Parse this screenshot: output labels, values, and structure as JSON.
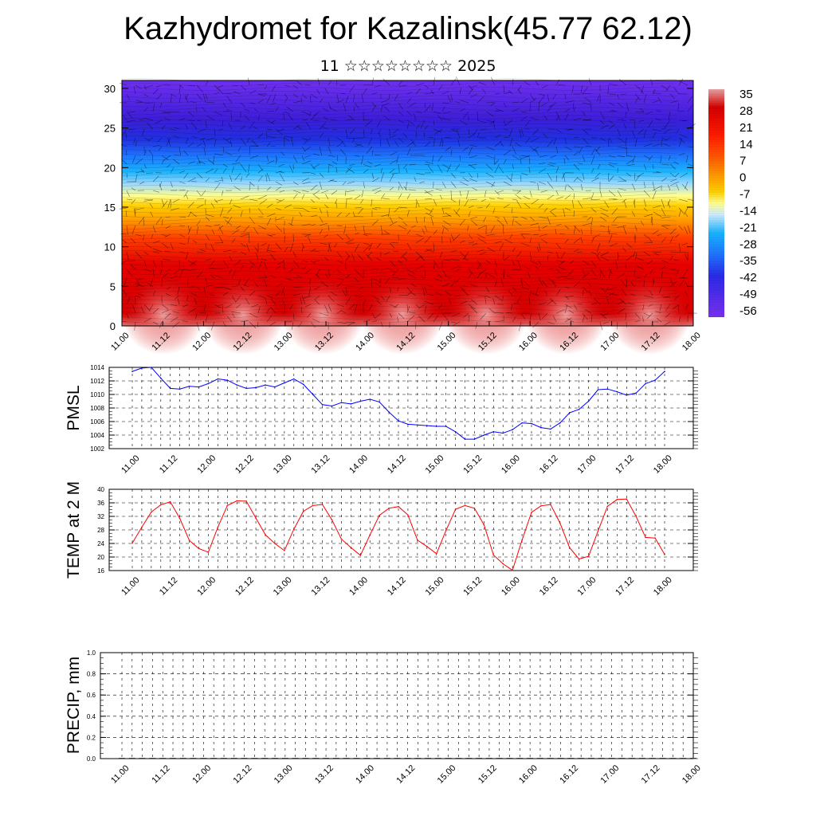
{
  "title": "Kazhydromet for Kazalinsk(45.77 62.12)",
  "subtitle": "11 ☆☆☆☆☆☆☆☆ 2025",
  "chart_data": [
    {
      "type": "heatmap",
      "description_of_fill": "temperature cross-section with wind vectors",
      "x_ticks": [
        "11.00",
        "11.12",
        "12.00",
        "12.12",
        "13.00",
        "13.12",
        "14.00",
        "14.12",
        "15.00",
        "15.12",
        "16.00",
        "16.12",
        "17.00",
        "17.12",
        "18.00"
      ],
      "y_ticks": [
        "0",
        "5",
        "10",
        "15",
        "20",
        "25",
        "30"
      ],
      "ylim": [
        0,
        31
      ],
      "colorbar_labels": [
        "35",
        "28",
        "21",
        "14",
        "7",
        "0",
        "-7",
        "-14",
        "-21",
        "-28",
        "-35",
        "-42",
        "-49",
        "-56"
      ],
      "colorbar_colors": [
        "#e6a0a0",
        "#d40000",
        "#ff3a00",
        "#ff8a00",
        "#ffc400",
        "#ffff80",
        "#dff0ff",
        "#19b4ff",
        "#1e78ff",
        "#3c3cf0",
        "#6a1fe8"
      ]
    },
    {
      "type": "line",
      "ylabel": "PMSL",
      "ylim": [
        1002,
        1014
      ],
      "y_ticks": [
        "1002",
        "1004",
        "1006",
        "1008",
        "1010",
        "1012",
        "1014"
      ],
      "x_ticks": [
        "11.00",
        "11.12",
        "12.00",
        "12.12",
        "13.00",
        "13.12",
        "14.00",
        "14.12",
        "15.00",
        "15.12",
        "16.00",
        "16.12",
        "17.00",
        "17.12",
        "18.00"
      ],
      "color": "#0000ff",
      "x": [
        0,
        3,
        6,
        9,
        12,
        15,
        18,
        21,
        24,
        27,
        30,
        33,
        36,
        39,
        42,
        45,
        48,
        51,
        54,
        57,
        60,
        63,
        66,
        69,
        72,
        75,
        78,
        81,
        84,
        87,
        90,
        93,
        96,
        99,
        102,
        105,
        108,
        111,
        114,
        117,
        120,
        123,
        126,
        129,
        132,
        135,
        138,
        141,
        144,
        147,
        150,
        153,
        156,
        159,
        162,
        165,
        168
      ],
      "values": [
        1013.4,
        1013.9,
        1014.0,
        1012.4,
        1010.9,
        1010.8,
        1011.2,
        1011.1,
        1011.6,
        1012.3,
        1012.1,
        1011.4,
        1010.9,
        1011.0,
        1011.4,
        1011.1,
        1011.7,
        1012.3,
        1011.5,
        1010.0,
        1008.5,
        1008.3,
        1008.8,
        1008.6,
        1009.0,
        1009.3,
        1008.9,
        1007.4,
        1006.1,
        1005.6,
        1005.5,
        1005.4,
        1005.3,
        1005.3,
        1004.5,
        1003.4,
        1003.4,
        1004.0,
        1004.5,
        1004.3,
        1004.8,
        1005.8,
        1005.7,
        1005.1,
        1004.9,
        1005.8,
        1007.3,
        1007.8,
        1009.0,
        1010.7,
        1010.8,
        1010.4,
        1009.9,
        1010.2,
        1011.6,
        1012.1,
        1013.4
      ]
    },
    {
      "type": "line",
      "ylabel": "TEMP at 2 M",
      "ylim": [
        16,
        40
      ],
      "y_ticks": [
        "16",
        "20",
        "24",
        "28",
        "32",
        "36",
        "40"
      ],
      "x_ticks": [
        "11.00",
        "11.12",
        "12.00",
        "12.12",
        "13.00",
        "13.12",
        "14.00",
        "14.12",
        "15.00",
        "15.12",
        "16.00",
        "16.12",
        "17.00",
        "17.12",
        "18.00"
      ],
      "color": "#ff0000",
      "x": [
        0,
        3,
        6,
        9,
        12,
        15,
        18,
        21,
        24,
        27,
        30,
        33,
        36,
        39,
        42,
        45,
        48,
        51,
        54,
        57,
        60,
        63,
        66,
        69,
        72,
        75,
        78,
        81,
        84,
        87,
        90,
        93,
        96,
        99,
        102,
        105,
        108,
        111,
        114,
        117,
        120,
        123,
        126,
        129,
        132,
        135,
        138,
        141,
        144,
        147,
        150,
        153,
        156,
        159,
        162,
        165,
        168
      ],
      "values": [
        24.1,
        28.8,
        33.3,
        35.4,
        36.3,
        31.4,
        24.9,
        22.5,
        21.4,
        28.8,
        35.2,
        36.6,
        36.5,
        31.5,
        26.6,
        24.0,
        21.9,
        28.2,
        33.5,
        35.2,
        35.5,
        31.0,
        25.3,
        22.8,
        20.5,
        26.5,
        32.3,
        34.4,
        34.9,
        32.4,
        25.0,
        23.1,
        21.0,
        27.8,
        34.1,
        35.2,
        34.4,
        29.5,
        20.6,
        18.0,
        16.1,
        25.0,
        33.2,
        35.1,
        35.5,
        30.0,
        22.8,
        19.4,
        20.2,
        27.7,
        35.0,
        37.0,
        37.1,
        32.0,
        25.8,
        25.6,
        20.8
      ]
    },
    {
      "type": "bar",
      "ylabel": "PRECIP, mm",
      "ylim": [
        0,
        1.0
      ],
      "y_ticks": [
        "0.0",
        "0.2",
        "0.4",
        "0.6",
        "0.8",
        "1.0"
      ],
      "x_ticks": [
        "11.00",
        "11.12",
        "12.00",
        "12.12",
        "13.00",
        "13.12",
        "14.00",
        "14.12",
        "15.00",
        "15.12",
        "16.00",
        "16.12",
        "17.00",
        "17.12",
        "18.00"
      ],
      "color": "#006400",
      "values": [
        0,
        0,
        0,
        0,
        0,
        0,
        0,
        0,
        0,
        0,
        0,
        0,
        0,
        0,
        0,
        0,
        0,
        0,
        0,
        0,
        0,
        0,
        0,
        0,
        0,
        0,
        0,
        0,
        0,
        0,
        0,
        0,
        0,
        0,
        0,
        0,
        0,
        0,
        0,
        0,
        0,
        0,
        0,
        0,
        0,
        0,
        0,
        0,
        0,
        0,
        0,
        0,
        0,
        0,
        0,
        0,
        0
      ]
    }
  ]
}
